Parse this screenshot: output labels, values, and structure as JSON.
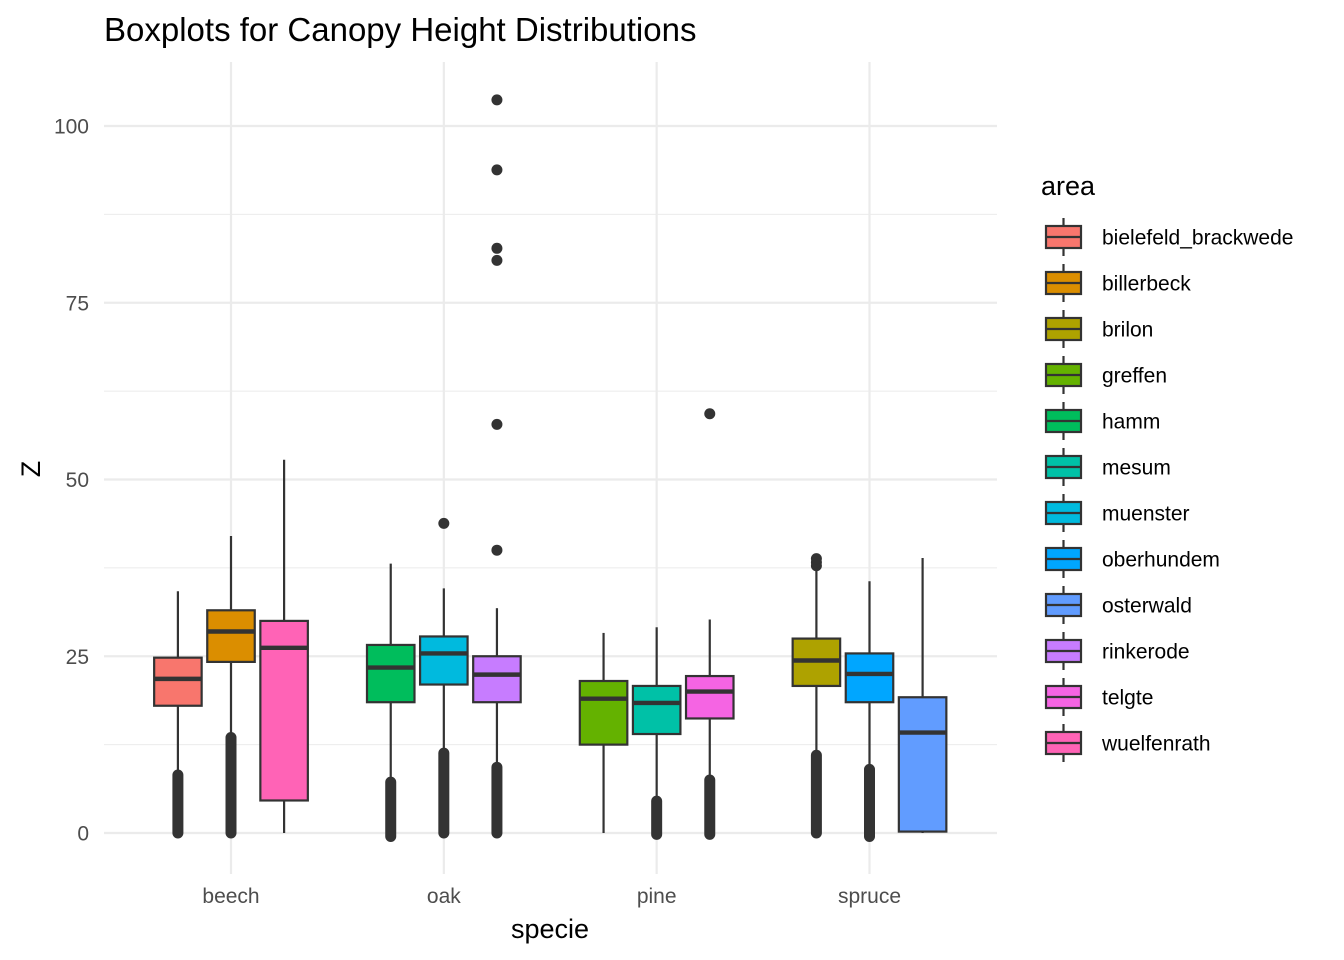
{
  "chart_data": {
    "type": "boxplot",
    "title": "Boxplots for Canopy Height Distributions",
    "xlabel": "specie",
    "ylabel": "Z",
    "ylim": [
      -5,
      109
    ],
    "yticks": [
      0,
      25,
      50,
      75,
      100
    ],
    "grid": true,
    "legend_position": "right",
    "legend_title": "area",
    "categories": [
      "beech",
      "oak",
      "pine",
      "spruce"
    ],
    "areas": [
      {
        "name": "bielefeld_brackwede",
        "color": "#F8766D"
      },
      {
        "name": "billerbeck",
        "color": "#DB8E00"
      },
      {
        "name": "brilon",
        "color": "#AEA200"
      },
      {
        "name": "greffen",
        "color": "#64B200"
      },
      {
        "name": "hamm",
        "color": "#00BD5C"
      },
      {
        "name": "mesum",
        "color": "#00C1A7"
      },
      {
        "name": "muenster",
        "color": "#00BADE"
      },
      {
        "name": "oberhundem",
        "color": "#00A6FF"
      },
      {
        "name": "osterwald",
        "color": "#619CFF"
      },
      {
        "name": "rinkerode",
        "color": "#C77CFF"
      },
      {
        "name": "telgte",
        "color": "#F564E3"
      },
      {
        "name": "wuelfenrath",
        "color": "#FF63B6"
      }
    ],
    "boxes": [
      {
        "category": "beech",
        "area": "bielefeld_brackwede",
        "min": 8.2,
        "q1": 18.0,
        "median": 21.8,
        "q3": 24.8,
        "max": 34.2,
        "outlier_range": [
          0,
          8.2
        ],
        "outliers": []
      },
      {
        "category": "beech",
        "area": "billerbeck",
        "min": 13.5,
        "q1": 24.2,
        "median": 28.5,
        "q3": 31.5,
        "max": 42.0,
        "outlier_range": [
          0,
          13.5
        ],
        "outliers": []
      },
      {
        "category": "beech",
        "area": "wuelfenrath",
        "min": 0.0,
        "q1": 4.6,
        "median": 26.2,
        "q3": 30.0,
        "max": 52.8,
        "outlier_range": null,
        "outliers": []
      },
      {
        "category": "oak",
        "area": "hamm",
        "min": 7.2,
        "q1": 18.5,
        "median": 23.4,
        "q3": 26.6,
        "max": 38.1,
        "outlier_range": [
          -0.5,
          7.2
        ],
        "outliers": []
      },
      {
        "category": "oak",
        "area": "muenster",
        "min": 11.3,
        "q1": 21.0,
        "median": 25.4,
        "q3": 27.8,
        "max": 34.6,
        "outlier_range": [
          0,
          11.3
        ],
        "outliers": [
          43.8
        ]
      },
      {
        "category": "oak",
        "area": "rinkerode",
        "min": 9.3,
        "q1": 18.5,
        "median": 22.4,
        "q3": 25.0,
        "max": 31.8,
        "outlier_range": [
          0,
          9.3
        ],
        "outliers": [
          40.0,
          57.8,
          81.0,
          82.7,
          93.8,
          103.7
        ]
      },
      {
        "category": "pine",
        "area": "greffen",
        "min": 0.0,
        "q1": 12.5,
        "median": 19.0,
        "q3": 21.5,
        "max": 28.3,
        "outlier_range": null,
        "outliers": []
      },
      {
        "category": "pine",
        "area": "mesum",
        "min": 4.5,
        "q1": 14.0,
        "median": 18.4,
        "q3": 20.8,
        "max": 29.1,
        "outlier_range": [
          -0.2,
          4.5
        ],
        "outliers": []
      },
      {
        "category": "pine",
        "area": "telgte",
        "min": 7.5,
        "q1": 16.2,
        "median": 20.0,
        "q3": 22.2,
        "max": 30.2,
        "outlier_range": [
          -0.2,
          7.5
        ],
        "outliers": [
          59.3
        ]
      },
      {
        "category": "spruce",
        "area": "brilon",
        "min": 11.0,
        "q1": 20.8,
        "median": 24.4,
        "q3": 27.5,
        "max": 37.2,
        "outlier_range": [
          0,
          11.0
        ],
        "outliers": [
          37.8,
          38.3,
          38.8
        ]
      },
      {
        "category": "spruce",
        "area": "oberhundem",
        "min": 9.0,
        "q1": 18.5,
        "median": 22.5,
        "q3": 25.4,
        "max": 35.6,
        "outlier_range": [
          -0.5,
          9.0
        ],
        "outliers": []
      },
      {
        "category": "spruce",
        "area": "osterwald",
        "min": 0.0,
        "q1": 0.2,
        "median": 14.2,
        "q3": 19.2,
        "max": 38.9,
        "outlier_range": null,
        "outliers": []
      }
    ]
  }
}
